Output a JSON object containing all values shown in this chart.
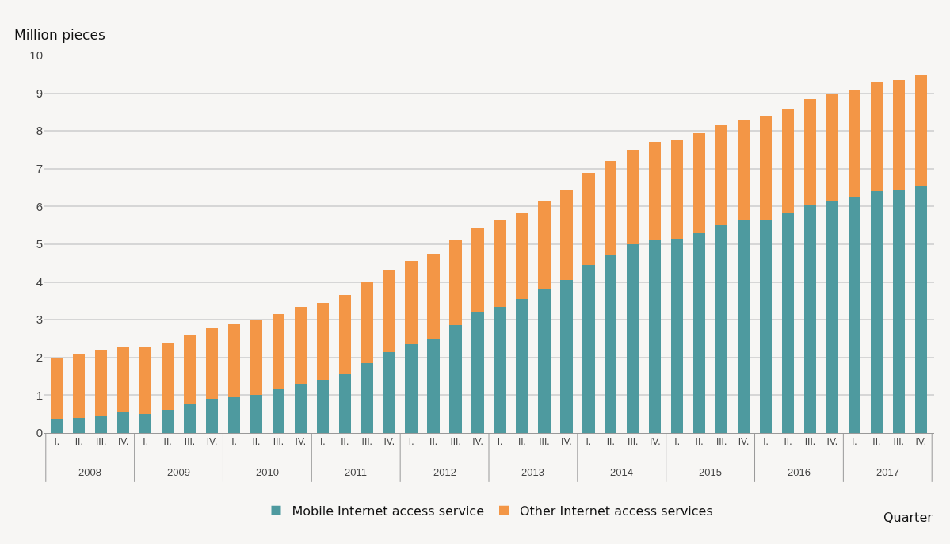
{
  "chart_data": {
    "type": "bar",
    "stacked": true,
    "ylabel": "Million pieces",
    "xlabel": "Quarter",
    "categories": [
      "I.",
      "II.",
      "III.",
      "IV.",
      "I.",
      "II.",
      "III.",
      "IV.",
      "I.",
      "II.",
      "III.",
      "IV.",
      "I.",
      "II.",
      "III.",
      "IV.",
      "I.",
      "II.",
      "III.",
      "IV.",
      "I.",
      "II.",
      "III.",
      "IV.",
      "I.",
      "II.",
      "III.",
      "IV.",
      "I.",
      "II.",
      "III.",
      "IV.",
      "I.",
      "II.",
      "III.",
      "IV.",
      "I.",
      "II.",
      "III.",
      "IV."
    ],
    "annotations": [
      "2008",
      "2009",
      "2010",
      "2011",
      "2012",
      "2013",
      "2014",
      "2015",
      "2016",
      "2017"
    ],
    "series": [
      {
        "name": "Mobile Internet access service",
        "color": "#4e9a9f",
        "values": [
          0.35,
          0.4,
          0.45,
          0.55,
          0.5,
          0.6,
          0.75,
          0.9,
          0.95,
          1.0,
          1.15,
          1.3,
          1.4,
          1.55,
          1.85,
          2.15,
          2.35,
          2.5,
          2.85,
          3.2,
          3.35,
          3.55,
          3.8,
          4.05,
          4.45,
          4.7,
          5.0,
          5.1,
          5.15,
          5.3,
          5.5,
          5.65,
          5.65,
          5.85,
          6.05,
          6.15,
          6.25,
          6.4,
          6.45,
          6.55
        ]
      },
      {
        "name": "Other Internet access services",
        "color": "#f39646",
        "values": [
          1.65,
          1.7,
          1.75,
          1.75,
          1.8,
          1.8,
          1.85,
          1.9,
          1.95,
          2.0,
          2.0,
          2.05,
          2.05,
          2.1,
          2.15,
          2.15,
          2.2,
          2.25,
          2.25,
          2.25,
          2.3,
          2.3,
          2.35,
          2.4,
          2.45,
          2.5,
          2.5,
          2.6,
          2.6,
          2.65,
          2.65,
          2.65,
          2.75,
          2.75,
          2.8,
          2.85,
          2.85,
          2.9,
          2.9,
          2.95
        ]
      }
    ],
    "ylim": [
      0,
      10
    ],
    "yticks": [
      0,
      1,
      2,
      3,
      4,
      5,
      6,
      7,
      8,
      9,
      10
    ],
    "grid": "y",
    "legend": "bottom"
  }
}
